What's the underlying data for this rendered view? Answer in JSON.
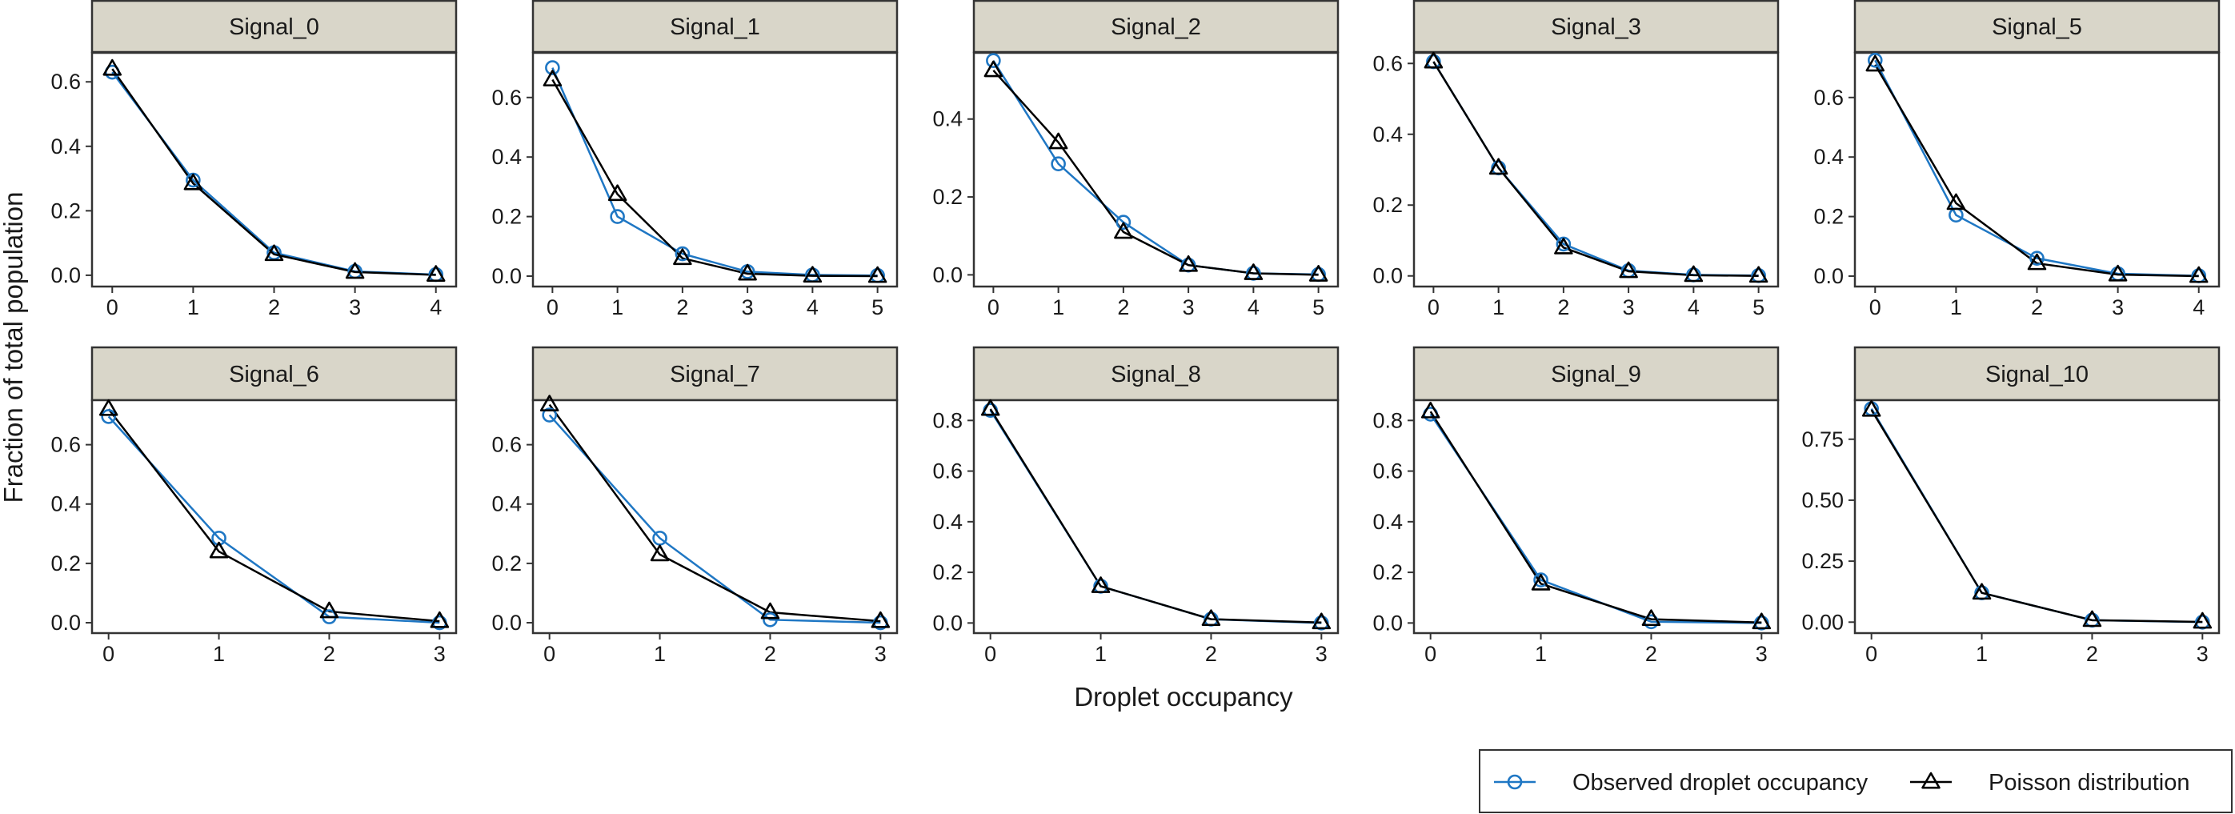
{
  "chart_data": {
    "type": "line",
    "xlabel": "Droplet occupancy",
    "ylabel": "Fraction of total population",
    "grid": false,
    "legend_position": "bottom-right",
    "colors": {
      "observed": "#1f77c4",
      "poisson": "#000000",
      "strip_bg": "#d9d6c9"
    },
    "legend": [
      {
        "key": "observed",
        "name": "Observed droplet occupancy",
        "marker": "circle"
      },
      {
        "key": "poisson",
        "name": "Poisson distribution",
        "marker": "triangle"
      }
    ],
    "panels": [
      {
        "name": "Signal_0",
        "xlim": [
          -0.25,
          4.25
        ],
        "ylim": [
          -0.035,
          0.69
        ],
        "xticks": [
          0,
          1,
          2,
          3,
          4
        ],
        "yticks": [
          "0.0",
          "0.2",
          "0.4",
          "0.6"
        ],
        "x": [
          0,
          1,
          2,
          3,
          4
        ],
        "observed": [
          0.63,
          0.295,
          0.07,
          0.012,
          0.002
        ],
        "poisson": [
          0.64,
          0.285,
          0.065,
          0.01,
          0.001
        ]
      },
      {
        "name": "Signal_1",
        "xlim": [
          -0.3,
          5.3
        ],
        "ylim": [
          -0.035,
          0.75
        ],
        "xticks": [
          0,
          1,
          2,
          3,
          4,
          5
        ],
        "yticks": [
          "0.0",
          "0.2",
          "0.4",
          "0.6"
        ],
        "x": [
          0,
          1,
          2,
          3,
          4,
          5
        ],
        "observed": [
          0.7,
          0.2,
          0.075,
          0.015,
          0.004,
          0.002
        ],
        "poisson": [
          0.66,
          0.275,
          0.06,
          0.008,
          0.001,
          0.0
        ]
      },
      {
        "name": "Signal_2",
        "xlim": [
          -0.3,
          5.3
        ],
        "ylim": [
          -0.03,
          0.57
        ],
        "xticks": [
          0,
          1,
          2,
          3,
          4,
          5
        ],
        "yticks": [
          "0.0",
          "0.2",
          "0.4"
        ],
        "x": [
          0,
          1,
          2,
          3,
          4,
          5
        ],
        "observed": [
          0.55,
          0.285,
          0.135,
          0.025,
          0.004,
          0.001
        ],
        "poisson": [
          0.525,
          0.34,
          0.11,
          0.025,
          0.004,
          0.0
        ]
      },
      {
        "name": "Signal_3",
        "xlim": [
          -0.3,
          5.3
        ],
        "ylim": [
          -0.03,
          0.63
        ],
        "xticks": [
          0,
          1,
          2,
          3,
          4,
          5
        ],
        "yticks": [
          "0.0",
          "0.2",
          "0.4",
          "0.6"
        ],
        "x": [
          0,
          1,
          2,
          3,
          4,
          5
        ],
        "observed": [
          0.605,
          0.305,
          0.09,
          0.015,
          0.003,
          0.001
        ],
        "poisson": [
          0.605,
          0.305,
          0.08,
          0.013,
          0.002,
          0.0
        ]
      },
      {
        "name": "Signal_5",
        "xlim": [
          -0.25,
          4.25
        ],
        "ylim": [
          -0.035,
          0.75
        ],
        "xticks": [
          0,
          1,
          2,
          3,
          4
        ],
        "yticks": [
          "0.0",
          "0.2",
          "0.4",
          "0.6"
        ],
        "x": [
          0,
          1,
          2,
          3,
          4
        ],
        "observed": [
          0.725,
          0.205,
          0.06,
          0.008,
          0.001
        ],
        "poisson": [
          0.71,
          0.245,
          0.043,
          0.005,
          0.0
        ]
      },
      {
        "name": "Signal_6",
        "xlim": [
          -0.15,
          3.15
        ],
        "ylim": [
          -0.035,
          0.75
        ],
        "xticks": [
          0,
          1,
          2,
          3
        ],
        "yticks": [
          "0.0",
          "0.2",
          "0.4",
          "0.6"
        ],
        "x": [
          0,
          1,
          2,
          3
        ],
        "observed": [
          0.695,
          0.285,
          0.02,
          0.0
        ],
        "poisson": [
          0.72,
          0.24,
          0.038,
          0.005
        ]
      },
      {
        "name": "Signal_7",
        "xlim": [
          -0.15,
          3.15
        ],
        "ylim": [
          -0.035,
          0.75
        ],
        "xticks": [
          0,
          1,
          2,
          3
        ],
        "yticks": [
          "0.0",
          "0.2",
          "0.4",
          "0.6"
        ],
        "x": [
          0,
          1,
          2,
          3
        ],
        "observed": [
          0.7,
          0.285,
          0.01,
          0.0
        ],
        "poisson": [
          0.735,
          0.23,
          0.035,
          0.005
        ]
      },
      {
        "name": "Signal_8",
        "xlim": [
          -0.15,
          3.15
        ],
        "ylim": [
          -0.04,
          0.88
        ],
        "xticks": [
          0,
          1,
          2,
          3
        ],
        "yticks": [
          "0.0",
          "0.2",
          "0.4",
          "0.6",
          "0.8"
        ],
        "x": [
          0,
          1,
          2,
          3
        ],
        "observed": [
          0.84,
          0.145,
          0.015,
          0.0
        ],
        "poisson": [
          0.845,
          0.145,
          0.015,
          0.002
        ]
      },
      {
        "name": "Signal_9",
        "xlim": [
          -0.15,
          3.15
        ],
        "ylim": [
          -0.04,
          0.88
        ],
        "xticks": [
          0,
          1,
          2,
          3
        ],
        "yticks": [
          "0.0",
          "0.2",
          "0.4",
          "0.6",
          "0.8"
        ],
        "x": [
          0,
          1,
          2,
          3
        ],
        "observed": [
          0.825,
          0.17,
          0.005,
          0.0
        ],
        "poisson": [
          0.835,
          0.155,
          0.015,
          0.002
        ]
      },
      {
        "name": "Signal_10",
        "xlim": [
          -0.15,
          3.15
        ],
        "ylim": [
          -0.045,
          0.91
        ],
        "xticks": [
          0,
          1,
          2,
          3
        ],
        "yticks": [
          "0.00",
          "0.25",
          "0.50",
          "0.75"
        ],
        "x": [
          0,
          1,
          2,
          3
        ],
        "observed": [
          0.875,
          0.12,
          0.008,
          0.0
        ],
        "poisson": [
          0.87,
          0.12,
          0.008,
          0.001
        ]
      }
    ]
  }
}
